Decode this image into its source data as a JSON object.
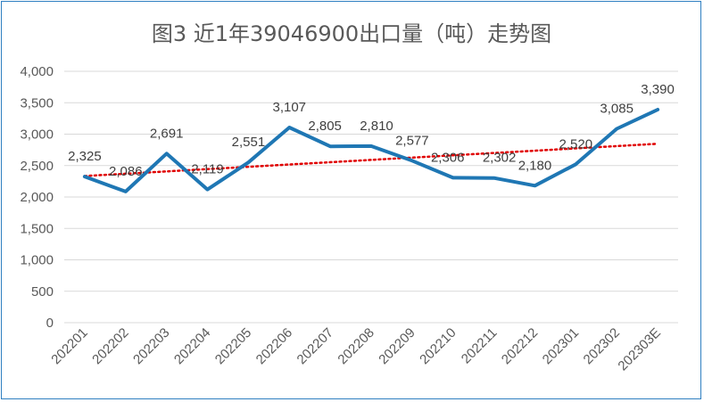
{
  "chart_data": {
    "type": "line",
    "title": "图3  近1年39046900出口量（吨）走势图",
    "categories": [
      "202201",
      "202202",
      "202203",
      "202204",
      "202205",
      "202206",
      "202207",
      "202208",
      "202209",
      "202210",
      "202211",
      "202212",
      "202301",
      "202302",
      "202303E"
    ],
    "series": [
      {
        "values": [
          2325,
          2086,
          2691,
          2119,
          2551,
          3107,
          2805,
          2810,
          2577,
          2306,
          2302,
          2180,
          2520,
          3085,
          3390
        ],
        "data_labels": [
          "2,325",
          "2,086",
          "2,691",
          "2,119",
          "2,551",
          "3,107",
          "2,805",
          "2,810",
          "2,577",
          "2,306",
          "2,302",
          "2,180",
          "2,520",
          "3,085",
          "3,390"
        ],
        "color": "#1f77b4",
        "trendline": "linear",
        "trendline_color": "#e00000"
      }
    ],
    "yticks": [
      "0",
      "500",
      "1,000",
      "1,500",
      "2,000",
      "2,500",
      "3,000",
      "3,500",
      "4,000"
    ],
    "ylim": [
      0,
      4000
    ],
    "grid": true,
    "legend": "none"
  }
}
